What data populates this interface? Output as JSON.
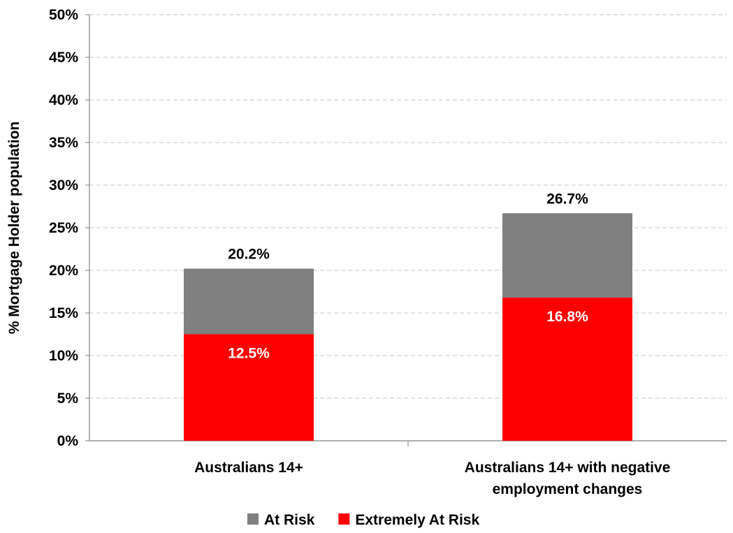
{
  "chart_data": {
    "type": "bar",
    "stacked": true,
    "title": "",
    "xlabel": "",
    "ylabel": "% Mortgage Holder population",
    "ylim": [
      0,
      50
    ],
    "ytick_step": 5,
    "ytick_labels": [
      "0%",
      "5%",
      "10%",
      "15%",
      "20%",
      "25%",
      "30%",
      "35%",
      "40%",
      "45%",
      "50%"
    ],
    "grid": true,
    "legend_position": "bottom",
    "categories": [
      [
        "Australians 14+"
      ],
      [
        "Australians 14+ with negative",
        "employment changes"
      ]
    ],
    "series": [
      {
        "name": "Extremely At Risk",
        "color": "#ff0000",
        "values": [
          12.5,
          16.8
        ],
        "labels": [
          "12.5%",
          "16.8%"
        ]
      },
      {
        "name": "At Risk",
        "color": "#808080",
        "values": [
          7.7,
          9.9
        ]
      }
    ],
    "totals": [
      20.2,
      26.7
    ],
    "total_labels": [
      "20.2%",
      "26.7%"
    ],
    "legend": [
      {
        "name": "At Risk",
        "color": "#808080"
      },
      {
        "name": "Extremely At Risk",
        "color": "#ff0000"
      }
    ]
  }
}
